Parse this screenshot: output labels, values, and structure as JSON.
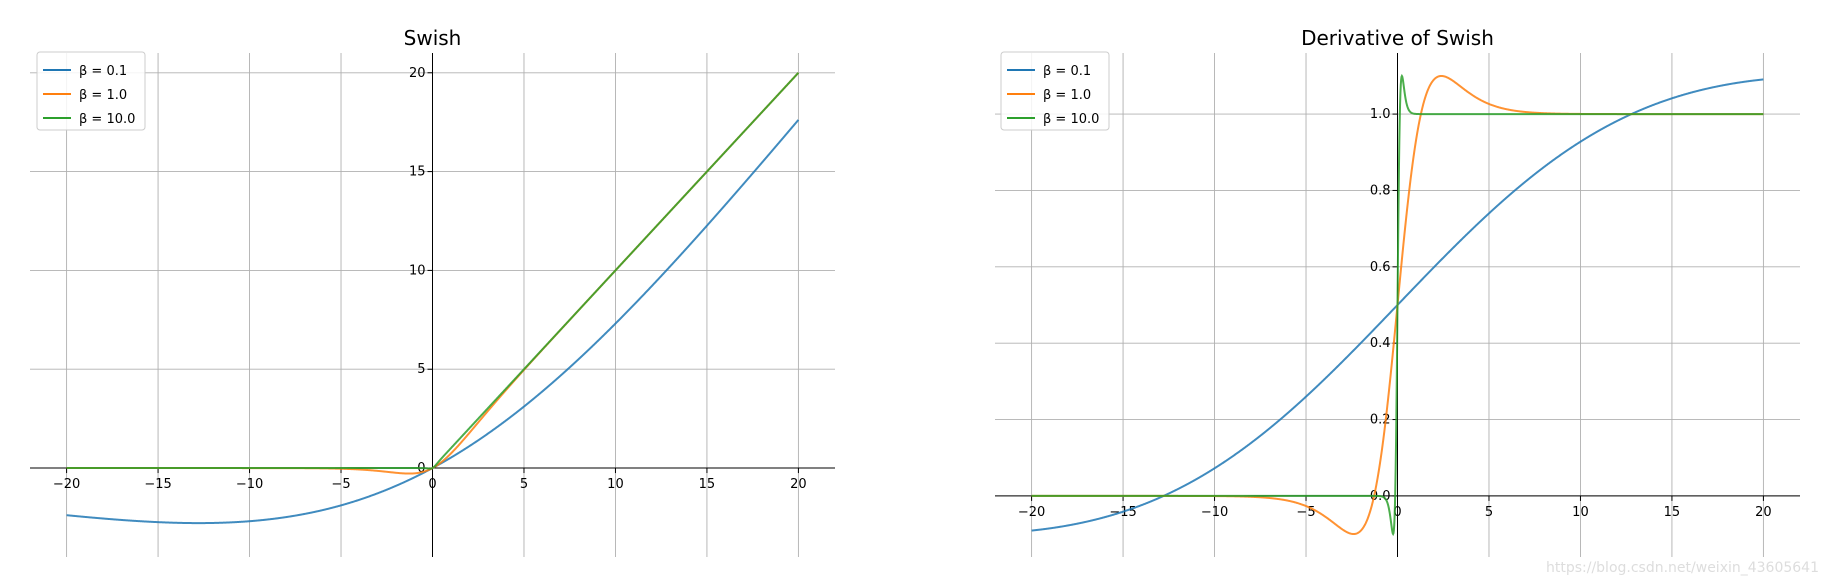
{
  "chart_data": [
    {
      "type": "line",
      "title": "Swish",
      "xlabel": "",
      "ylabel": "",
      "function": "swish",
      "xlim": [
        -22,
        22
      ],
      "ylim": [
        -4.5,
        21
      ],
      "x_ticks": [
        -20,
        -15,
        -10,
        -5,
        0,
        5,
        10,
        15,
        20
      ],
      "y_ticks": [
        0,
        5,
        10,
        15,
        20
      ],
      "x_tick_labels": [
        "−20",
        "−15",
        "−10",
        "−5",
        "0",
        "5",
        "10",
        "15",
        "20"
      ],
      "y_tick_labels": [
        "0",
        "5",
        "10",
        "15",
        "20"
      ],
      "x_range": [
        -20,
        20
      ],
      "grid": true,
      "spines": "centered at origin",
      "legend_position": "top-left",
      "series": [
        {
          "name": "β = 0.1",
          "beta": 0.1,
          "color": "#1f77b4"
        },
        {
          "name": "β = 1.0",
          "beta": 1.0,
          "color": "#ff7f0e"
        },
        {
          "name": "β = 10.0",
          "beta": 10.0,
          "color": "#2ca02c"
        }
      ]
    },
    {
      "type": "line",
      "title": "Derivative of Swish",
      "xlabel": "",
      "ylabel": "",
      "function": "swish_derivative",
      "xlim": [
        -22,
        22
      ],
      "ylim": [
        -0.16,
        1.16
      ],
      "x_ticks": [
        -20,
        -15,
        -10,
        -5,
        0,
        5,
        10,
        15,
        20
      ],
      "y_ticks": [
        0.0,
        0.2,
        0.4,
        0.6,
        0.8,
        1.0
      ],
      "x_tick_labels": [
        "−20",
        "−15",
        "−10",
        "−5",
        "0",
        "5",
        "10",
        "15",
        "20"
      ],
      "y_tick_labels": [
        "0.0",
        "0.2",
        "0.4",
        "0.6",
        "0.8",
        "1.0"
      ],
      "x_range": [
        -20,
        20
      ],
      "grid": true,
      "spines": "centered at origin",
      "legend_position": "top-left",
      "series": [
        {
          "name": "β = 0.1",
          "beta": 0.1,
          "color": "#1f77b4"
        },
        {
          "name": "β = 1.0",
          "beta": 1.0,
          "color": "#ff7f0e"
        },
        {
          "name": "β = 10.0",
          "beta": 10.0,
          "color": "#2ca02c"
        }
      ]
    }
  ],
  "watermark": "https://blog.csdn.net/weixin_43605641"
}
